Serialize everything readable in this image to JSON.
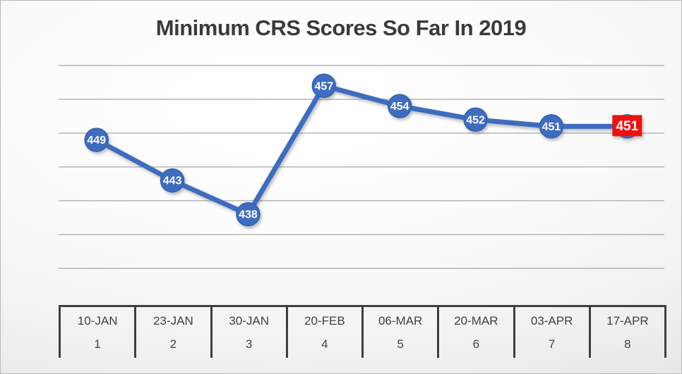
{
  "chart_data": {
    "type": "line",
    "title": "Minimum CRS Scores So Far In 2019",
    "categories": [
      "10-JAN",
      "23-JAN",
      "30-JAN",
      "20-FEB",
      "06-MAR",
      "20-MAR",
      "03-APR",
      "17-APR"
    ],
    "draw_numbers": [
      "1",
      "2",
      "3",
      "4",
      "5",
      "6",
      "7",
      "8"
    ],
    "values": [
      449,
      443,
      438,
      457,
      454,
      452,
      451,
      451
    ],
    "data_labels": [
      "449",
      "443",
      "438",
      "457",
      "454",
      "452",
      "451",
      "451"
    ],
    "ylim": [
      430,
      460
    ],
    "gridline_step": 5,
    "grid": true,
    "legend": "none",
    "xlabel": "",
    "ylabel": "",
    "y_axis_labels_visible": false,
    "highlight_last_point": true
  },
  "axis_table": {
    "columns": [
      {
        "date": "10-JAN",
        "num": "1"
      },
      {
        "date": "23-JAN",
        "num": "2"
      },
      {
        "date": "30-JAN",
        "num": "3"
      },
      {
        "date": "20-FEB",
        "num": "4"
      },
      {
        "date": "06-MAR",
        "num": "5"
      },
      {
        "date": "20-MAR",
        "num": "6"
      },
      {
        "date": "03-APR",
        "num": "7"
      },
      {
        "date": "17-APR",
        "num": "8"
      }
    ]
  },
  "colors": {
    "line": "#3E6CBF",
    "marker_fill": "#3E6CBF",
    "marker_border": "#3460AE",
    "marker_text": "#FFFFFF",
    "highlight_bg": "#EC1212",
    "highlight_text": "#FFFFFF",
    "gridline": "#B3B3B3",
    "title_text": "#3A3A3A",
    "table_border": "#3F3F3F",
    "table_text": "#404040"
  }
}
